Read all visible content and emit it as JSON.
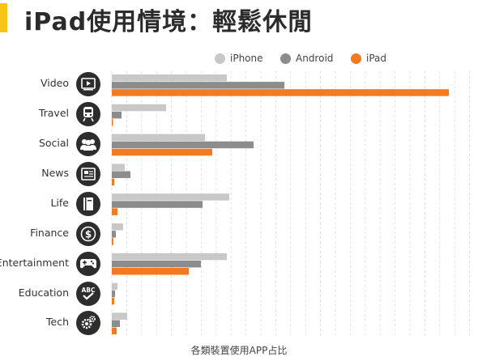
{
  "header": {
    "title": "iPad使用情境：輕鬆休閒"
  },
  "colors": {
    "accent": "#f5c518",
    "iphone": "#c8c8c8",
    "android": "#8c8c8c",
    "ipad": "#f47a20",
    "icon_bg": "#2d2d2d"
  },
  "chart_data": {
    "type": "bar",
    "orientation": "horizontal",
    "title": "iPad使用情境：輕鬆休閒",
    "xlabel": "各類裝置使用APP占比",
    "ylabel": "",
    "categories": [
      "Video",
      "Travel",
      "Social",
      "News",
      "Life",
      "Finance",
      "Entertainment",
      "Education",
      "Tech"
    ],
    "icons": [
      "video-icon",
      "train-icon",
      "people-icon",
      "newspaper-icon",
      "book-icon",
      "dollar-icon",
      "gamepad-icon",
      "abc-check-icon",
      "gears-icon"
    ],
    "series": [
      {
        "name": "iPhone",
        "values": [
          142,
          67,
          115,
          16,
          145,
          14,
          142,
          7,
          19
        ]
      },
      {
        "name": "Android",
        "values": [
          213,
          12,
          175,
          23,
          112,
          5,
          110,
          4,
          10
        ]
      },
      {
        "name": "iPad",
        "values": [
          416,
          1,
          124,
          3,
          7,
          2,
          95,
          3,
          6
        ]
      }
    ],
    "xlim": [
      0,
      442
    ],
    "grid": true,
    "legend": "top"
  }
}
